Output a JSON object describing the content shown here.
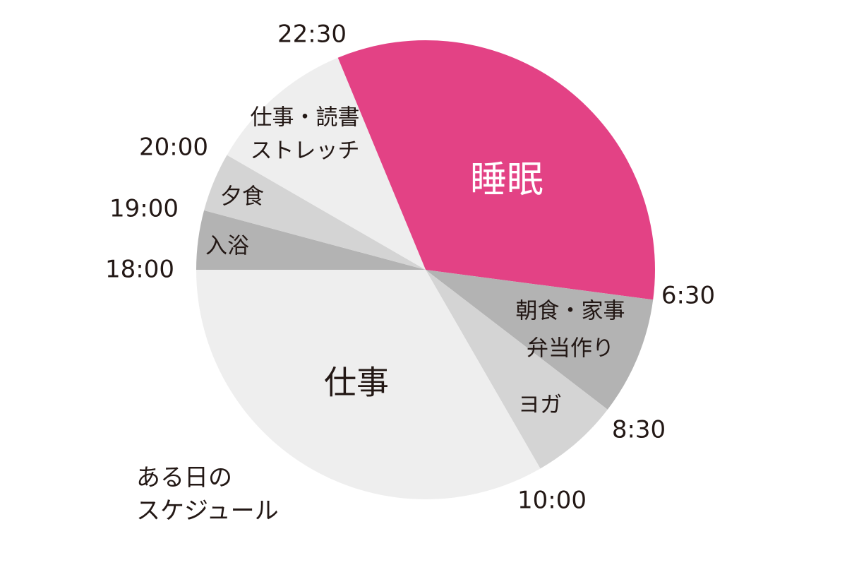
{
  "chart_data": {
    "type": "pie",
    "title": [
      "ある日の",
      "スケジュール"
    ],
    "start_angle": 337.5,
    "categories": [
      [
        "睡眠"
      ],
      [
        "朝食・家事",
        "弁当作り"
      ],
      [
        "ヨガ"
      ],
      [
        "仕事"
      ],
      [
        "入浴"
      ],
      [
        "夕食"
      ],
      [
        "仕事・読書",
        "ストレッチ"
      ]
    ],
    "values": [
      8,
      2,
      1.5,
      8,
      1,
      1,
      2.5
    ],
    "colors": [
      "#e34285",
      "#b3b3b3",
      "#d4d4d4",
      "#eeeeee",
      "#b3b3b3",
      "#d4d4d4",
      "#eeeeee"
    ],
    "boundary_labels": [
      "22:30",
      "6:30",
      "8:30",
      "10:00",
      "18:00",
      "19:00",
      "20:00"
    ]
  }
}
